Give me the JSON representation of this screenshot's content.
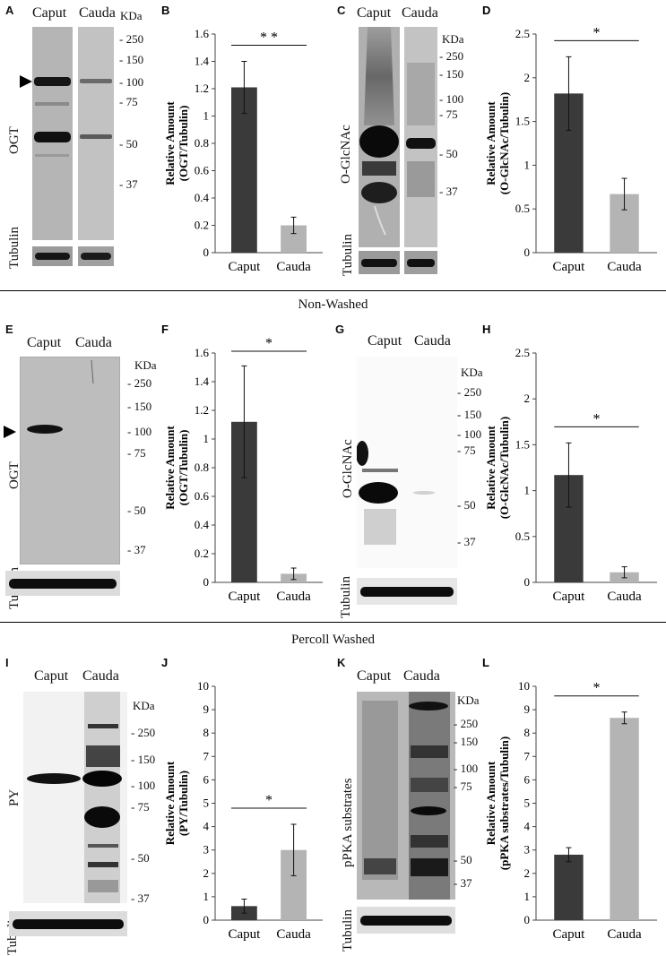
{
  "row1": {
    "A": {
      "letter": "A",
      "lanes": [
        "Caput",
        "Cauda"
      ],
      "kda": "KDa",
      "markers": [
        "250",
        "150",
        "100",
        "75",
        "50",
        "37"
      ],
      "label": "OGT",
      "loading": "Tubulin"
    },
    "C": {
      "letter": "C",
      "lanes": [
        "Caput",
        "Cauda"
      ],
      "kda": "KDa",
      "markers": [
        "250",
        "150",
        "100",
        "75",
        "50",
        "37"
      ],
      "label": "O-GlcNAc",
      "loading": "Tubulin"
    }
  },
  "row1_section": "Non-Washed",
  "row2": {
    "E": {
      "letter": "E",
      "lanes": [
        "Caput",
        "Cauda"
      ],
      "kda": "KDa",
      "markers": [
        "250",
        "150",
        "100",
        "75",
        "50",
        "37"
      ],
      "label": "OGT",
      "loading": "Tubulin"
    },
    "G": {
      "letter": "G",
      "lanes": [
        "Caput",
        "Cauda"
      ],
      "kda": "KDa",
      "markers": [
        "250",
        "150",
        "100",
        "75",
        "50",
        "37"
      ],
      "label": "O-GlcNAc",
      "loading": "Tubulin"
    }
  },
  "row2_section": "Percoll Washed",
  "row3": {
    "I": {
      "letter": "I",
      "lanes": [
        "Caput",
        "Cauda"
      ],
      "kda": "KDa",
      "markers": [
        "250",
        "150",
        "100",
        "75",
        "50",
        "37"
      ],
      "label": "PY",
      "loading": "Tubulin"
    },
    "K": {
      "letter": "K",
      "lanes": [
        "Caput",
        "Cauda"
      ],
      "kda": "KDa",
      "markers": [
        "250",
        "150",
        "100",
        "75",
        "50",
        "37"
      ],
      "label": "pPKA substrates",
      "loading": "Tubulin"
    }
  },
  "chart_data": [
    {
      "panel": "B",
      "type": "bar",
      "categories": [
        "Caput",
        "Cauda"
      ],
      "values": [
        1.21,
        0.2
      ],
      "errors": [
        0.19,
        0.06
      ],
      "ylim": [
        0,
        1.6
      ],
      "yticks": [
        "0",
        "0.2",
        "0.4",
        "0.6",
        "0.8",
        "1",
        "1.2",
        "1.4",
        "1.6"
      ],
      "ylabel": "Relative Amount",
      "ylabel2": "(OGT/Tubulin)",
      "significance": "* *",
      "colors": [
        "#3a3a3a",
        "#b4b4b4"
      ]
    },
    {
      "panel": "D",
      "type": "bar",
      "categories": [
        "Caput",
        "Cauda"
      ],
      "values": [
        1.82,
        0.67
      ],
      "errors": [
        0.42,
        0.18
      ],
      "ylim": [
        0,
        2.5
      ],
      "yticks": [
        "0",
        "0.5",
        "1",
        "1.5",
        "2",
        "2.5"
      ],
      "ylabel": "Relative Amount",
      "ylabel2": "(O-GlcNAc/Tubulin)",
      "significance": "*",
      "colors": [
        "#3a3a3a",
        "#b4b4b4"
      ]
    },
    {
      "panel": "F",
      "type": "bar",
      "categories": [
        "Caput",
        "Cauda"
      ],
      "values": [
        1.12,
        0.06
      ],
      "errors": [
        0.39,
        0.04
      ],
      "ylim": [
        0,
        1.6
      ],
      "yticks": [
        "0",
        "0.2",
        "0.4",
        "0.6",
        "0.8",
        "1",
        "1.2",
        "1.4",
        "1.6"
      ],
      "ylabel": "Relative Amount",
      "ylabel2": "(OGT/Tubulin)",
      "significance": "*",
      "colors": [
        "#3a3a3a",
        "#b4b4b4"
      ]
    },
    {
      "panel": "H",
      "type": "bar",
      "categories": [
        "Caput",
        "Cauda"
      ],
      "values": [
        1.17,
        0.11
      ],
      "errors": [
        0.35,
        0.06
      ],
      "ylim": [
        0,
        2.5
      ],
      "yticks": [
        "0",
        "0.5",
        "1",
        "1.5",
        "2",
        "2.5"
      ],
      "ylabel": "Relative Amount",
      "ylabel2": "(O-GlcNAc/Tubulin)",
      "significance": "*",
      "colors": [
        "#3a3a3a",
        "#b4b4b4"
      ]
    },
    {
      "panel": "J",
      "type": "bar",
      "categories": [
        "Caput",
        "Cauda"
      ],
      "values": [
        0.6,
        3.0
      ],
      "errors": [
        0.3,
        1.1
      ],
      "ylim": [
        0,
        10
      ],
      "yticks": [
        "0",
        "1",
        "2",
        "3",
        "4",
        "5",
        "6",
        "7",
        "8",
        "9",
        "10"
      ],
      "ylabel": "Relative Amount",
      "ylabel2": "(PY/Tubulin)",
      "significance": "*",
      "colors": [
        "#3a3a3a",
        "#b4b4b4"
      ]
    },
    {
      "panel": "L",
      "type": "bar",
      "categories": [
        "Caput",
        "Cauda"
      ],
      "values": [
        2.8,
        8.65
      ],
      "errors": [
        0.3,
        0.25
      ],
      "ylim": [
        0,
        10
      ],
      "yticks": [
        "0",
        "1",
        "2",
        "3",
        "4",
        "5",
        "6",
        "7",
        "8",
        "9",
        "10"
      ],
      "ylabel": "Relative Amount",
      "ylabel2": "(pPKA substrates/Tubulin)",
      "significance": "*",
      "colors": [
        "#3a3a3a",
        "#b4b4b4"
      ]
    }
  ]
}
